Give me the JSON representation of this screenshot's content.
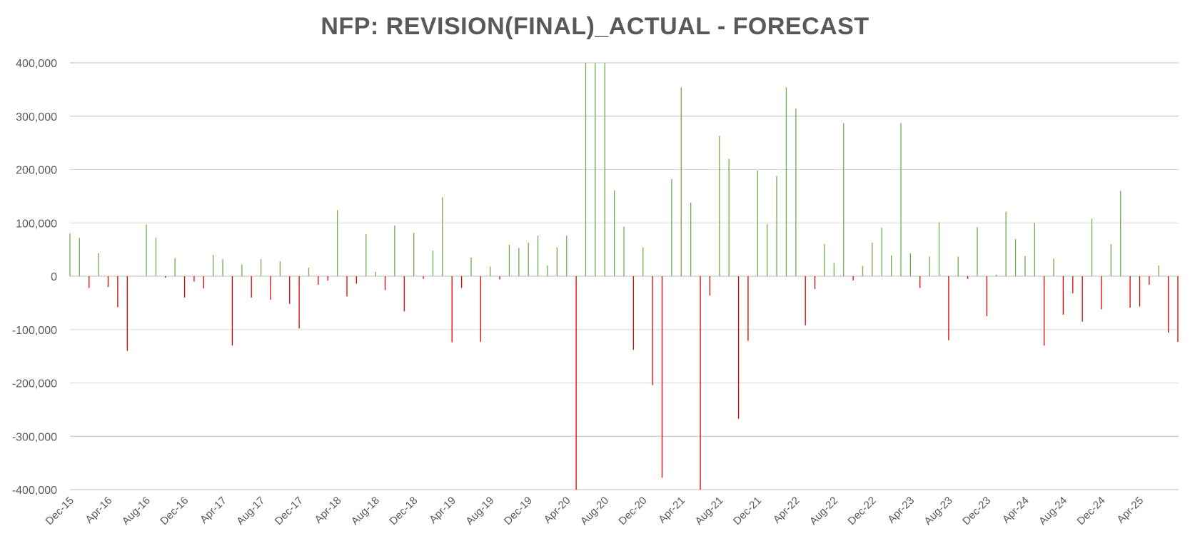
{
  "chart_data": {
    "type": "bar",
    "title": "NFP: REVISION(FINAL)_ACTUAL - FORECAST",
    "xlabel": "",
    "ylabel": "",
    "ylim": [
      -400000,
      400000
    ],
    "y_ticks": [
      400000,
      300000,
      200000,
      100000,
      0,
      -100000,
      -200000,
      -300000,
      -400000
    ],
    "y_tick_labels": [
      "400,000",
      "300,000",
      "200,000",
      "100,000",
      "0",
      "-100,000",
      "-200,000",
      "-300,000",
      "-400,000"
    ],
    "x_tick_labels": [
      "Dec-15",
      "Apr-16",
      "Aug-16",
      "Dec-16",
      "Apr-17",
      "Aug-17",
      "Dec-17",
      "Apr-18",
      "Aug-18",
      "Dec-18",
      "Apr-19",
      "Aug-19",
      "Dec-19",
      "Apr-20",
      "Aug-20",
      "Dec-20",
      "Apr-21",
      "Aug-21",
      "Dec-21",
      "Apr-22",
      "Aug-22",
      "Dec-22",
      "Apr-23",
      "Aug-23",
      "Dec-23",
      "Apr-24",
      "Aug-24",
      "Dec-24",
      "Apr-25"
    ],
    "x_tick_every": 4,
    "grid": true,
    "colors": {
      "positive": "#70ad47",
      "negative": "#e00000",
      "grid": "#d9d9d9",
      "text": "#595959"
    },
    "values": [
      80000,
      72000,
      -22000,
      43000,
      -20000,
      -58000,
      -140000,
      0,
      97000,
      72000,
      -3000,
      34000,
      -40000,
      -10000,
      -23000,
      40000,
      32000,
      -130000,
      22000,
      -40000,
      32000,
      -44000,
      28000,
      -52000,
      -98000,
      16000,
      -16000,
      -8000,
      124000,
      -38000,
      -14000,
      79000,
      8000,
      -26000,
      95000,
      -66000,
      81000,
      -5000,
      48000,
      148000,
      -124000,
      -22000,
      35000,
      -123000,
      18000,
      -6000,
      59000,
      53000,
      63000,
      76000,
      20000,
      54000,
      76000,
      -400000,
      400000,
      400000,
      400000,
      161000,
      93000,
      -138000,
      54000,
      -204000,
      -378000,
      182000,
      354000,
      138000,
      -400000,
      -36000,
      263000,
      220000,
      -267000,
      -121000,
      198000,
      98000,
      188000,
      354000,
      314000,
      -92000,
      -24000,
      60000,
      25000,
      287000,
      -8000,
      19000,
      63000,
      91000,
      39000,
      287000,
      43000,
      -22000,
      37000,
      101000,
      -120000,
      37000,
      -5000,
      92000,
      -75000,
      3000,
      121000,
      70000,
      38000,
      100000,
      -130000,
      33000,
      -72000,
      -32000,
      -85000,
      108000,
      -62000,
      60000,
      160000,
      -59000,
      -57000,
      -16000,
      20000,
      -106000,
      -123000
    ]
  }
}
